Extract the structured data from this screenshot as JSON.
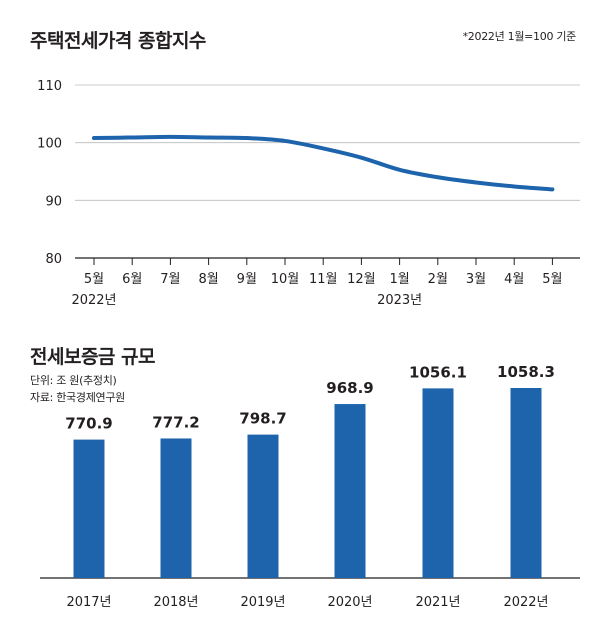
{
  "chart_data": [
    {
      "type": "line",
      "title": "주택전세가격 종합지수",
      "note": "*2022년 1월=100 기준",
      "x_tick_labels": [
        "5월",
        "6월",
        "7월",
        "8월",
        "9월",
        "10월",
        "11월",
        "12월",
        "1월",
        "2월",
        "3월",
        "4월",
        "5월"
      ],
      "year_labels": [
        "2022년",
        "2023년"
      ],
      "y_tick_labels": [
        "110",
        "100",
        "90",
        "80"
      ],
      "ylim": [
        80,
        110
      ],
      "grid": "horizontal",
      "series": [
        {
          "values": [
            100.8,
            100.9,
            101.0,
            100.9,
            100.8,
            100.3,
            99.0,
            97.4,
            95.3,
            94.0,
            93.1,
            92.4,
            91.9
          ]
        }
      ],
      "color": "#1e64ad"
    },
    {
      "type": "bar",
      "title": "전세보증금 규모",
      "unit": "단위: 조 원(추정치)",
      "source": "자료: 한국경제연구원",
      "categories": [
        "2017년",
        "2018년",
        "2019년",
        "2020년",
        "2021년",
        "2022년"
      ],
      "values": [
        770.9,
        777.2,
        798.7,
        968.9,
        1056.1,
        1058.3
      ],
      "value_labels": [
        "770.9",
        "777.2",
        "798.7",
        "968.9",
        "1056.1",
        "1058.3"
      ],
      "color": "#1e64ad"
    }
  ]
}
